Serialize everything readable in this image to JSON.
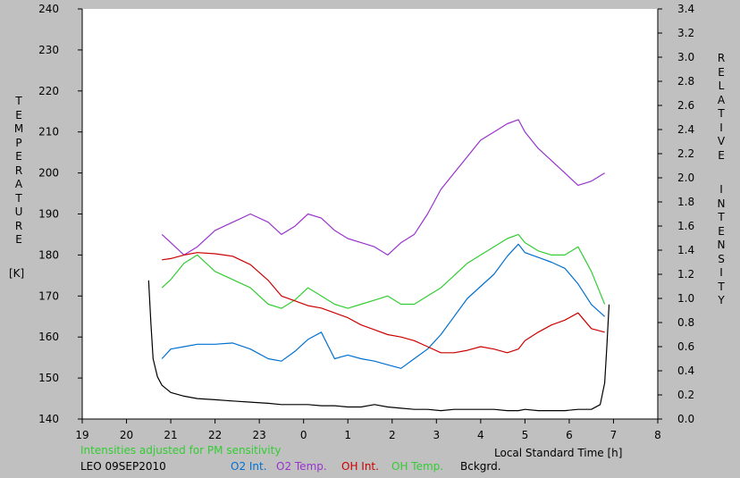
{
  "chart_data": {
    "type": "line",
    "left_axis": {
      "label_letters": [
        "T",
        "E",
        "M",
        "P",
        "E",
        "R",
        "A",
        "T",
        "U",
        "R",
        "E"
      ],
      "unit": "[K]",
      "ylim": [
        140,
        240
      ],
      "ticks": [
        "140",
        "150",
        "160",
        "170",
        "180",
        "190",
        "200",
        "210",
        "220",
        "230",
        "240"
      ]
    },
    "right_axis": {
      "label_letters_1": [
        "R",
        "E",
        "L",
        "A",
        "T",
        "I",
        "V",
        "E"
      ],
      "label_letters_2": [
        "I",
        "N",
        "T",
        "E",
        "N",
        "S",
        "I",
        "T",
        "Y"
      ],
      "ylim": [
        0,
        3.4
      ],
      "ticks": [
        "0.0",
        "0.2",
        "0.4",
        "0.6",
        "0.8",
        "1.0",
        "1.2",
        "1.4",
        "1.6",
        "1.8",
        "2.0",
        "2.2",
        "2.4",
        "2.6",
        "2.8",
        "3.0",
        "3.2",
        "3.4"
      ]
    },
    "x_axis": {
      "label": "Local Standard Time [h]",
      "xlim": [
        19,
        32
      ],
      "ticks": [
        "19",
        "20",
        "21",
        "22",
        "23",
        "0",
        "1",
        "2",
        "3",
        "4",
        "5",
        "6",
        "7",
        "8"
      ]
    },
    "grid": false,
    "footnote": "Intensities adjusted for PM sensitivity",
    "station": "LEO 09SEP2010",
    "series": [
      {
        "name": "O2 Int.",
        "color": "#0070d0",
        "axis": "right",
        "x": [
          20.8,
          21.0,
          21.3,
          21.6,
          22.0,
          22.4,
          22.8,
          23.2,
          23.5,
          23.8,
          24.1,
          24.4,
          24.7,
          25.0,
          25.3,
          25.6,
          25.9,
          26.2,
          26.5,
          26.8,
          27.1,
          27.4,
          27.7,
          28.0,
          28.3,
          28.6,
          28.85,
          29.0,
          29.3,
          29.6,
          29.9,
          30.2,
          30.5,
          30.8
        ],
        "y": [
          0.5,
          0.58,
          0.6,
          0.62,
          0.62,
          0.63,
          0.58,
          0.5,
          0.48,
          0.56,
          0.66,
          0.72,
          0.5,
          0.53,
          0.5,
          0.48,
          0.45,
          0.42,
          0.5,
          0.58,
          0.7,
          0.85,
          1.0,
          1.1,
          1.2,
          1.35,
          1.45,
          1.38,
          1.34,
          1.3,
          1.25,
          1.12,
          0.95,
          0.85
        ]
      },
      {
        "name": "O2 Temp.",
        "color": "#9933cc",
        "axis": "left",
        "x": [
          20.8,
          21.0,
          21.3,
          21.6,
          22.0,
          22.4,
          22.8,
          23.2,
          23.5,
          23.8,
          24.1,
          24.4,
          24.7,
          25.0,
          25.3,
          25.6,
          25.9,
          26.2,
          26.5,
          26.8,
          27.1,
          27.4,
          27.7,
          28.0,
          28.3,
          28.6,
          28.85,
          29.0,
          29.3,
          29.6,
          29.9,
          30.2,
          30.5,
          30.8
        ],
        "y": [
          185,
          183,
          180,
          182,
          186,
          188,
          190,
          188,
          185,
          187,
          190,
          189,
          186,
          184,
          183,
          182,
          180,
          183,
          185,
          190,
          196,
          200,
          204,
          208,
          210,
          212,
          213,
          210,
          206,
          203,
          200,
          197,
          198,
          200
        ]
      },
      {
        "name": "OH Int.",
        "color": "#cc0000",
        "axis": "right",
        "x": [
          20.8,
          21.0,
          21.3,
          21.6,
          22.0,
          22.4,
          22.8,
          23.2,
          23.5,
          23.8,
          24.1,
          24.4,
          24.7,
          25.0,
          25.3,
          25.6,
          25.9,
          26.2,
          26.5,
          26.8,
          27.1,
          27.4,
          27.7,
          28.0,
          28.3,
          28.6,
          28.85,
          29.0,
          29.3,
          29.6,
          29.9,
          30.2,
          30.5,
          30.8
        ],
        "y": [
          1.32,
          1.33,
          1.36,
          1.38,
          1.37,
          1.35,
          1.28,
          1.15,
          1.02,
          0.98,
          0.94,
          0.92,
          0.88,
          0.84,
          0.78,
          0.74,
          0.7,
          0.68,
          0.65,
          0.6,
          0.55,
          0.55,
          0.57,
          0.6,
          0.58,
          0.55,
          0.58,
          0.65,
          0.72,
          0.78,
          0.82,
          0.88,
          0.75,
          0.72
        ]
      },
      {
        "name": "OH Temp.",
        "color": "#33cc33",
        "axis": "left",
        "x": [
          20.8,
          21.0,
          21.3,
          21.6,
          22.0,
          22.4,
          22.8,
          23.2,
          23.5,
          23.8,
          24.1,
          24.4,
          24.7,
          25.0,
          25.3,
          25.6,
          25.9,
          26.2,
          26.5,
          26.8,
          27.1,
          27.4,
          27.7,
          28.0,
          28.3,
          28.6,
          28.85,
          29.0,
          29.3,
          29.6,
          29.9,
          30.2,
          30.5,
          30.8
        ],
        "y": [
          172,
          174,
          178,
          180,
          176,
          174,
          172,
          168,
          167,
          169,
          172,
          170,
          168,
          167,
          168,
          169,
          170,
          168,
          168,
          170,
          172,
          175,
          178,
          180,
          182,
          184,
          185,
          183,
          181,
          180,
          180,
          182,
          176,
          168
        ]
      },
      {
        "name": "Bckgrd.",
        "color": "#000000",
        "axis": "right",
        "x": [
          20.5,
          20.55,
          20.6,
          20.7,
          20.8,
          21.0,
          21.3,
          21.6,
          22.0,
          22.4,
          22.8,
          23.2,
          23.5,
          23.8,
          24.1,
          24.4,
          24.7,
          25.0,
          25.3,
          25.6,
          25.9,
          26.2,
          26.5,
          26.8,
          27.1,
          27.4,
          27.7,
          28.0,
          28.3,
          28.6,
          28.85,
          29.0,
          29.3,
          29.6,
          29.9,
          30.2,
          30.5,
          30.7,
          30.8,
          30.85,
          30.9
        ],
        "y": [
          1.15,
          0.8,
          0.5,
          0.35,
          0.28,
          0.22,
          0.19,
          0.17,
          0.16,
          0.15,
          0.14,
          0.13,
          0.12,
          0.12,
          0.12,
          0.11,
          0.11,
          0.1,
          0.1,
          0.12,
          0.1,
          0.09,
          0.08,
          0.08,
          0.07,
          0.08,
          0.08,
          0.08,
          0.08,
          0.07,
          0.07,
          0.08,
          0.07,
          0.07,
          0.07,
          0.08,
          0.08,
          0.12,
          0.3,
          0.6,
          0.95
        ]
      }
    ]
  }
}
